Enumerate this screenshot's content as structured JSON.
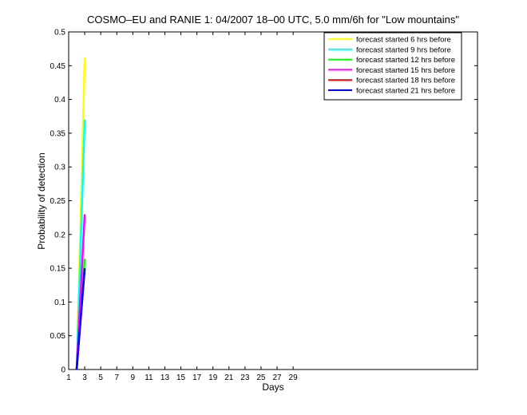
{
  "chart_data": {
    "type": "line",
    "title": "COSMO–EU and RANIE 1: 04/2007 18–00 UTC, 5.0 mm/6h for \"Low mountains\"",
    "xlabel": "Days",
    "ylabel": "Probability of detection",
    "xlim": [
      1,
      52
    ],
    "ylim": [
      0,
      0.5
    ],
    "xticks": [
      "1",
      "3",
      "5",
      "7",
      "9",
      "11",
      "13",
      "15",
      "17",
      "19",
      "21",
      "23",
      "25",
      "27",
      "29"
    ],
    "yticks": [
      "0",
      "0.05",
      "0.1",
      "0.15",
      "0.2",
      "0.25",
      "0.3",
      "0.35",
      "0.4",
      "0.45",
      "0.5"
    ],
    "grid": false,
    "legend_position": "top-right",
    "series": [
      {
        "name": "forecast started 6 hrs before",
        "color": "#ffff00",
        "x": [
          2,
          3
        ],
        "y": [
          0,
          0.462
        ]
      },
      {
        "name": "forecast started 9 hrs before",
        "color": "#00ffff",
        "x": [
          2,
          3
        ],
        "y": [
          0,
          0.37
        ]
      },
      {
        "name": "forecast started 12 hrs before",
        "color": "#00ff00",
        "x": [
          2,
          3
        ],
        "y": [
          0,
          0.164
        ]
      },
      {
        "name": "forecast started 15 hrs before",
        "color": "#ff00ff",
        "x": [
          2,
          3
        ],
        "y": [
          0,
          0.23
        ]
      },
      {
        "name": "forecast started 18 hrs before",
        "color": "#ff0000",
        "x": [
          2,
          3
        ],
        "y": [
          0,
          0.15
        ]
      },
      {
        "name": "forecast started 21 hrs before",
        "color": "#0000ff",
        "x": [
          2,
          3
        ],
        "y": [
          0,
          0.15
        ]
      }
    ]
  }
}
